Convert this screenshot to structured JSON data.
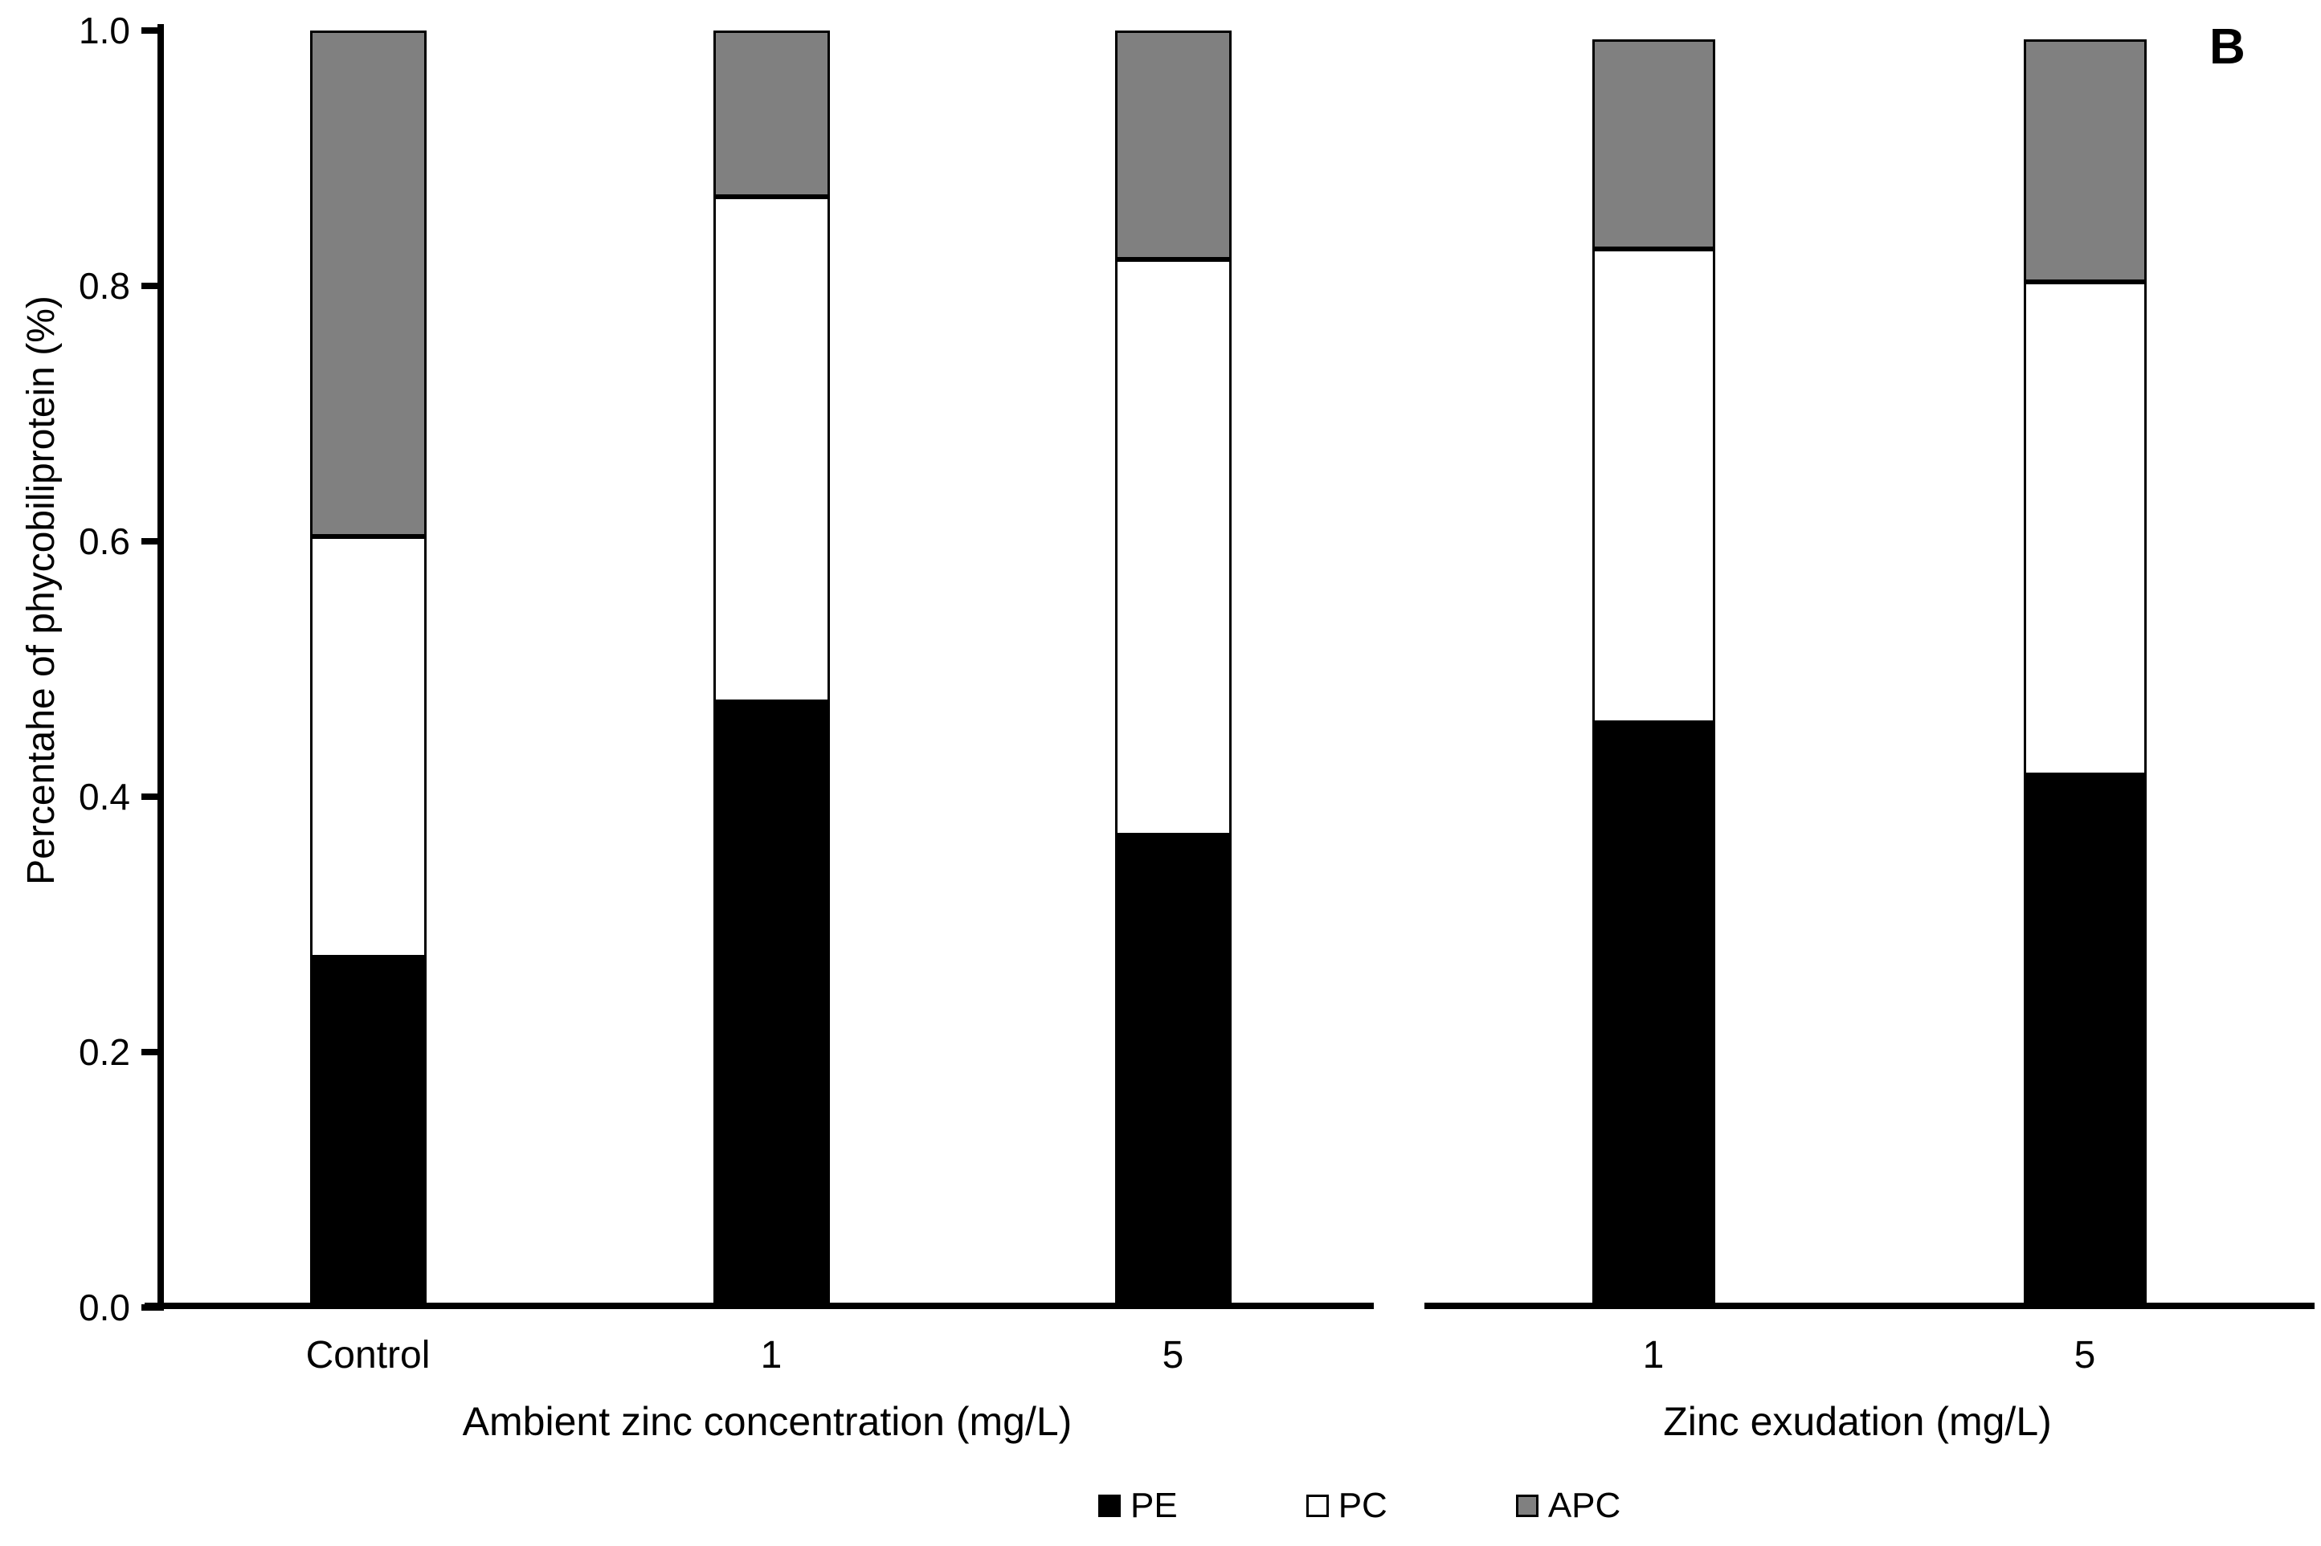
{
  "chart_data": {
    "type": "bar",
    "stacked": true,
    "grid": false,
    "legend_position": "bottom",
    "panel_label": "B",
    "ylabel": "Percentahe of phycobiliprotein (%)",
    "ylim": [
      0.0,
      1.0
    ],
    "y_ticks": [
      "1.0",
      "0.8",
      "0.6",
      "0.4",
      "0.2",
      "0.0"
    ],
    "series_colors": {
      "PE": "#000000",
      "PC": "#ffffff",
      "APC": "#808080"
    },
    "panels": [
      {
        "xlabel": "Ambient zinc concentration (mg/L)",
        "categories": [
          "Control",
          "1",
          "5"
        ],
        "series": [
          {
            "name": "PE",
            "color": "#000000",
            "values": [
              0.274,
              0.474,
              0.37
            ]
          },
          {
            "name": "PC",
            "color": "#ffffff",
            "values": [
              0.33,
              0.396,
              0.451
            ]
          },
          {
            "name": "APC",
            "color": "#808080",
            "values": [
              0.396,
              0.13,
              0.179
            ]
          }
        ]
      },
      {
        "xlabel": "Zinc exudation (mg/L)",
        "categories": [
          "1",
          "5"
        ],
        "series": [
          {
            "name": "PE",
            "color": "#000000",
            "values": [
              0.458,
              0.417
            ]
          },
          {
            "name": "PC",
            "color": "#ffffff",
            "values": [
              0.371,
              0.386
            ]
          },
          {
            "name": "APC",
            "color": "#808080",
            "values": [
              0.164,
              0.19
            ]
          }
        ]
      }
    ],
    "legend": [
      {
        "label": "PE",
        "color": "#000000"
      },
      {
        "label": "PC",
        "color": "#ffffff"
      },
      {
        "label": "APC",
        "color": "#808080"
      }
    ]
  }
}
